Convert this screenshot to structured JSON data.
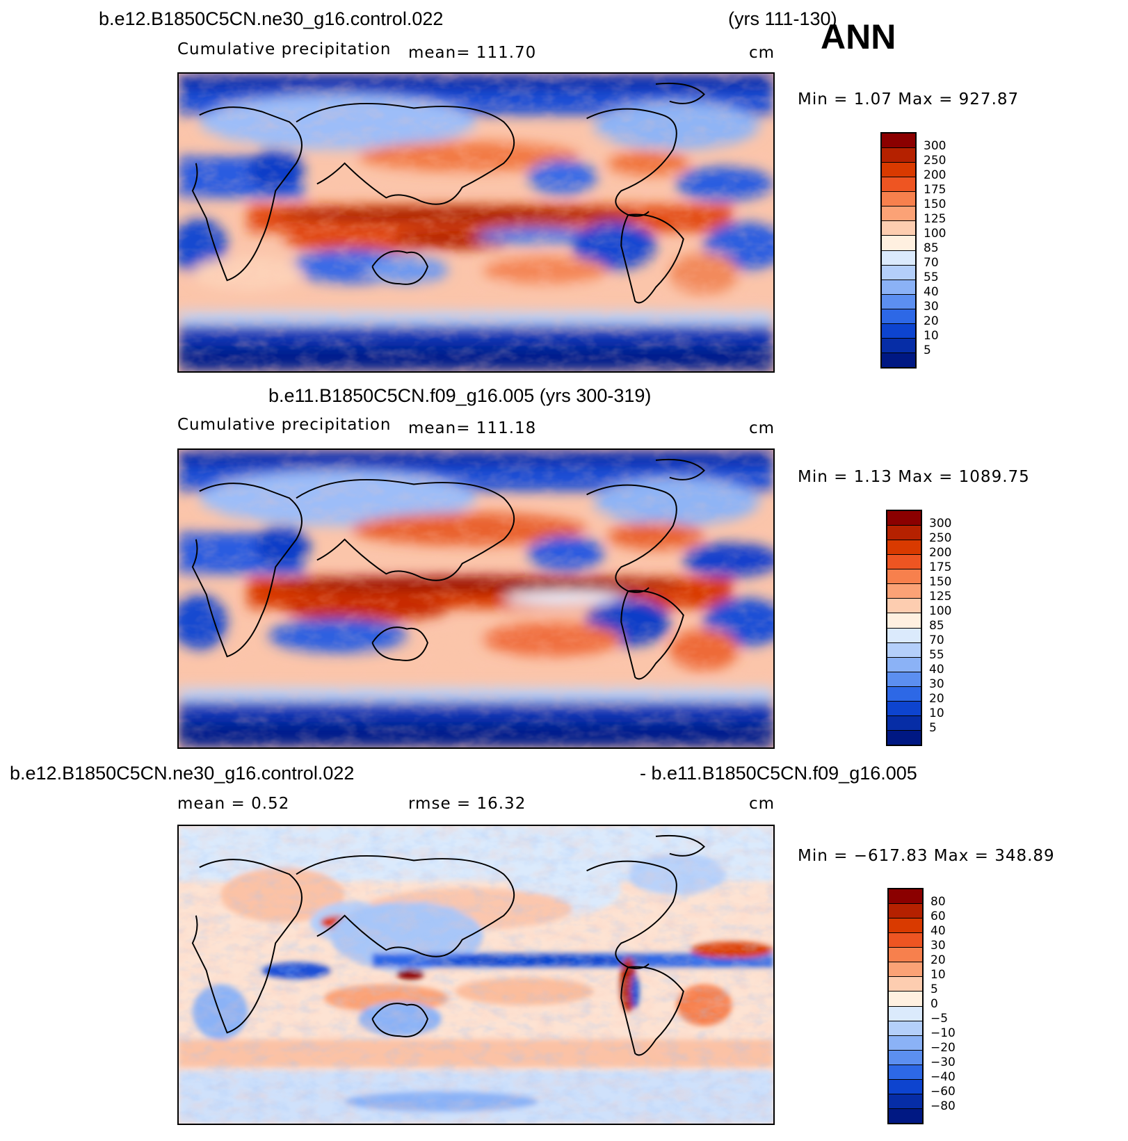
{
  "header": {
    "case1": "b.e12.B1850C5CN.ne30_g16.control.022",
    "years1": "(yrs 111-130)",
    "season": "ANN"
  },
  "panels": [
    {
      "variable": "Cumulative precipitation",
      "mean_text": "mean=  111.70",
      "units": "cm",
      "minmax": "Min =    1.07  Max  =  927.87",
      "levels": [
        "300",
        "250",
        "200",
        "175",
        "150",
        "125",
        "100",
        "85",
        "70",
        "55",
        "40",
        "30",
        "20",
        "10",
        "5"
      ],
      "colors": [
        "#8b0000",
        "#b52100",
        "#d93a00",
        "#ee5522",
        "#f7804d",
        "#fba276",
        "#fdcdb0",
        "#fff0e0",
        "#dbeafc",
        "#b4cffa",
        "#8bb2f6",
        "#5c8ff0",
        "#2d68e6",
        "#0d44cf",
        "#062da6",
        "#001883"
      ]
    },
    {
      "title": "b.e11.B1850C5CN.f09_g16.005 (yrs 300-319)",
      "variable": "Cumulative precipitation",
      "mean_text": "mean=  111.18",
      "units": "cm",
      "minmax": "Min =    1.13  Max  =  1089.75",
      "levels": [
        "300",
        "250",
        "200",
        "175",
        "150",
        "125",
        "100",
        "85",
        "70",
        "55",
        "40",
        "30",
        "20",
        "10",
        "5"
      ],
      "colors": [
        "#8b0000",
        "#b52100",
        "#d93a00",
        "#ee5522",
        "#f7804d",
        "#fba276",
        "#fdcdb0",
        "#fff0e0",
        "#dbeafc",
        "#b4cffa",
        "#8bb2f6",
        "#5c8ff0",
        "#2d68e6",
        "#0d44cf",
        "#062da6",
        "#001883"
      ]
    },
    {
      "title_left": "b.e12.B1850C5CN.ne30_g16.control.022",
      "title_right": "- b.e11.B1850C5CN.f09_g16.005",
      "mean_text": "mean =     0.52",
      "rmse_text": "rmse =    16.32",
      "units": "cm",
      "minmax": "Min = −617.83  Max  =  348.89",
      "levels": [
        "80",
        "60",
        "40",
        "30",
        "20",
        "10",
        "5",
        "0",
        "−5",
        "−10",
        "−20",
        "−30",
        "−40",
        "−60",
        "−80"
      ],
      "colors": [
        "#8b0000",
        "#b52100",
        "#d93a00",
        "#ee5522",
        "#f7804d",
        "#fba276",
        "#fdcdb0",
        "#fff0e0",
        "#dbeafc",
        "#b4cffa",
        "#8bb2f6",
        "#5c8ff0",
        "#2d68e6",
        "#0d44cf",
        "#062da6",
        "#001883"
      ]
    }
  ]
}
